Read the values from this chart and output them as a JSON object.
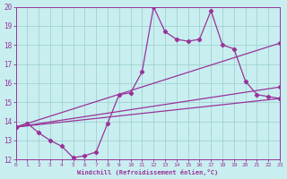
{
  "xlabel": "Windchill (Refroidissement éolien,°C)",
  "xlim": [
    0,
    23
  ],
  "ylim": [
    12,
    20
  ],
  "xticks": [
    0,
    1,
    2,
    3,
    4,
    5,
    6,
    7,
    8,
    9,
    10,
    11,
    12,
    13,
    14,
    15,
    16,
    17,
    18,
    19,
    20,
    21,
    22,
    23
  ],
  "yticks": [
    12,
    13,
    14,
    15,
    16,
    17,
    18,
    19,
    20
  ],
  "background_color": "#c8eef0",
  "line_color": "#993399",
  "grid_color": "#99cccc",
  "zigzag_x": [
    0,
    1,
    2,
    3,
    4,
    5,
    6,
    7,
    8,
    9,
    10,
    11,
    12,
    13,
    14,
    15,
    16,
    17,
    18,
    19,
    20,
    21,
    22,
    23
  ],
  "zigzag_y": [
    13.7,
    13.9,
    13.4,
    13.0,
    12.7,
    12.1,
    12.2,
    12.4,
    13.9,
    15.4,
    15.5,
    16.6,
    20.0,
    18.7,
    18.3,
    18.2,
    18.3,
    19.8,
    18.0,
    17.8,
    16.1,
    15.4,
    15.3,
    15.2
  ],
  "trend1_x": [
    0,
    23
  ],
  "trend1_y": [
    13.7,
    18.1
  ],
  "trend2_x": [
    0,
    23
  ],
  "trend2_y": [
    13.7,
    15.8
  ],
  "trend3_x": [
    0,
    23
  ],
  "trend3_y": [
    13.7,
    15.2
  ]
}
